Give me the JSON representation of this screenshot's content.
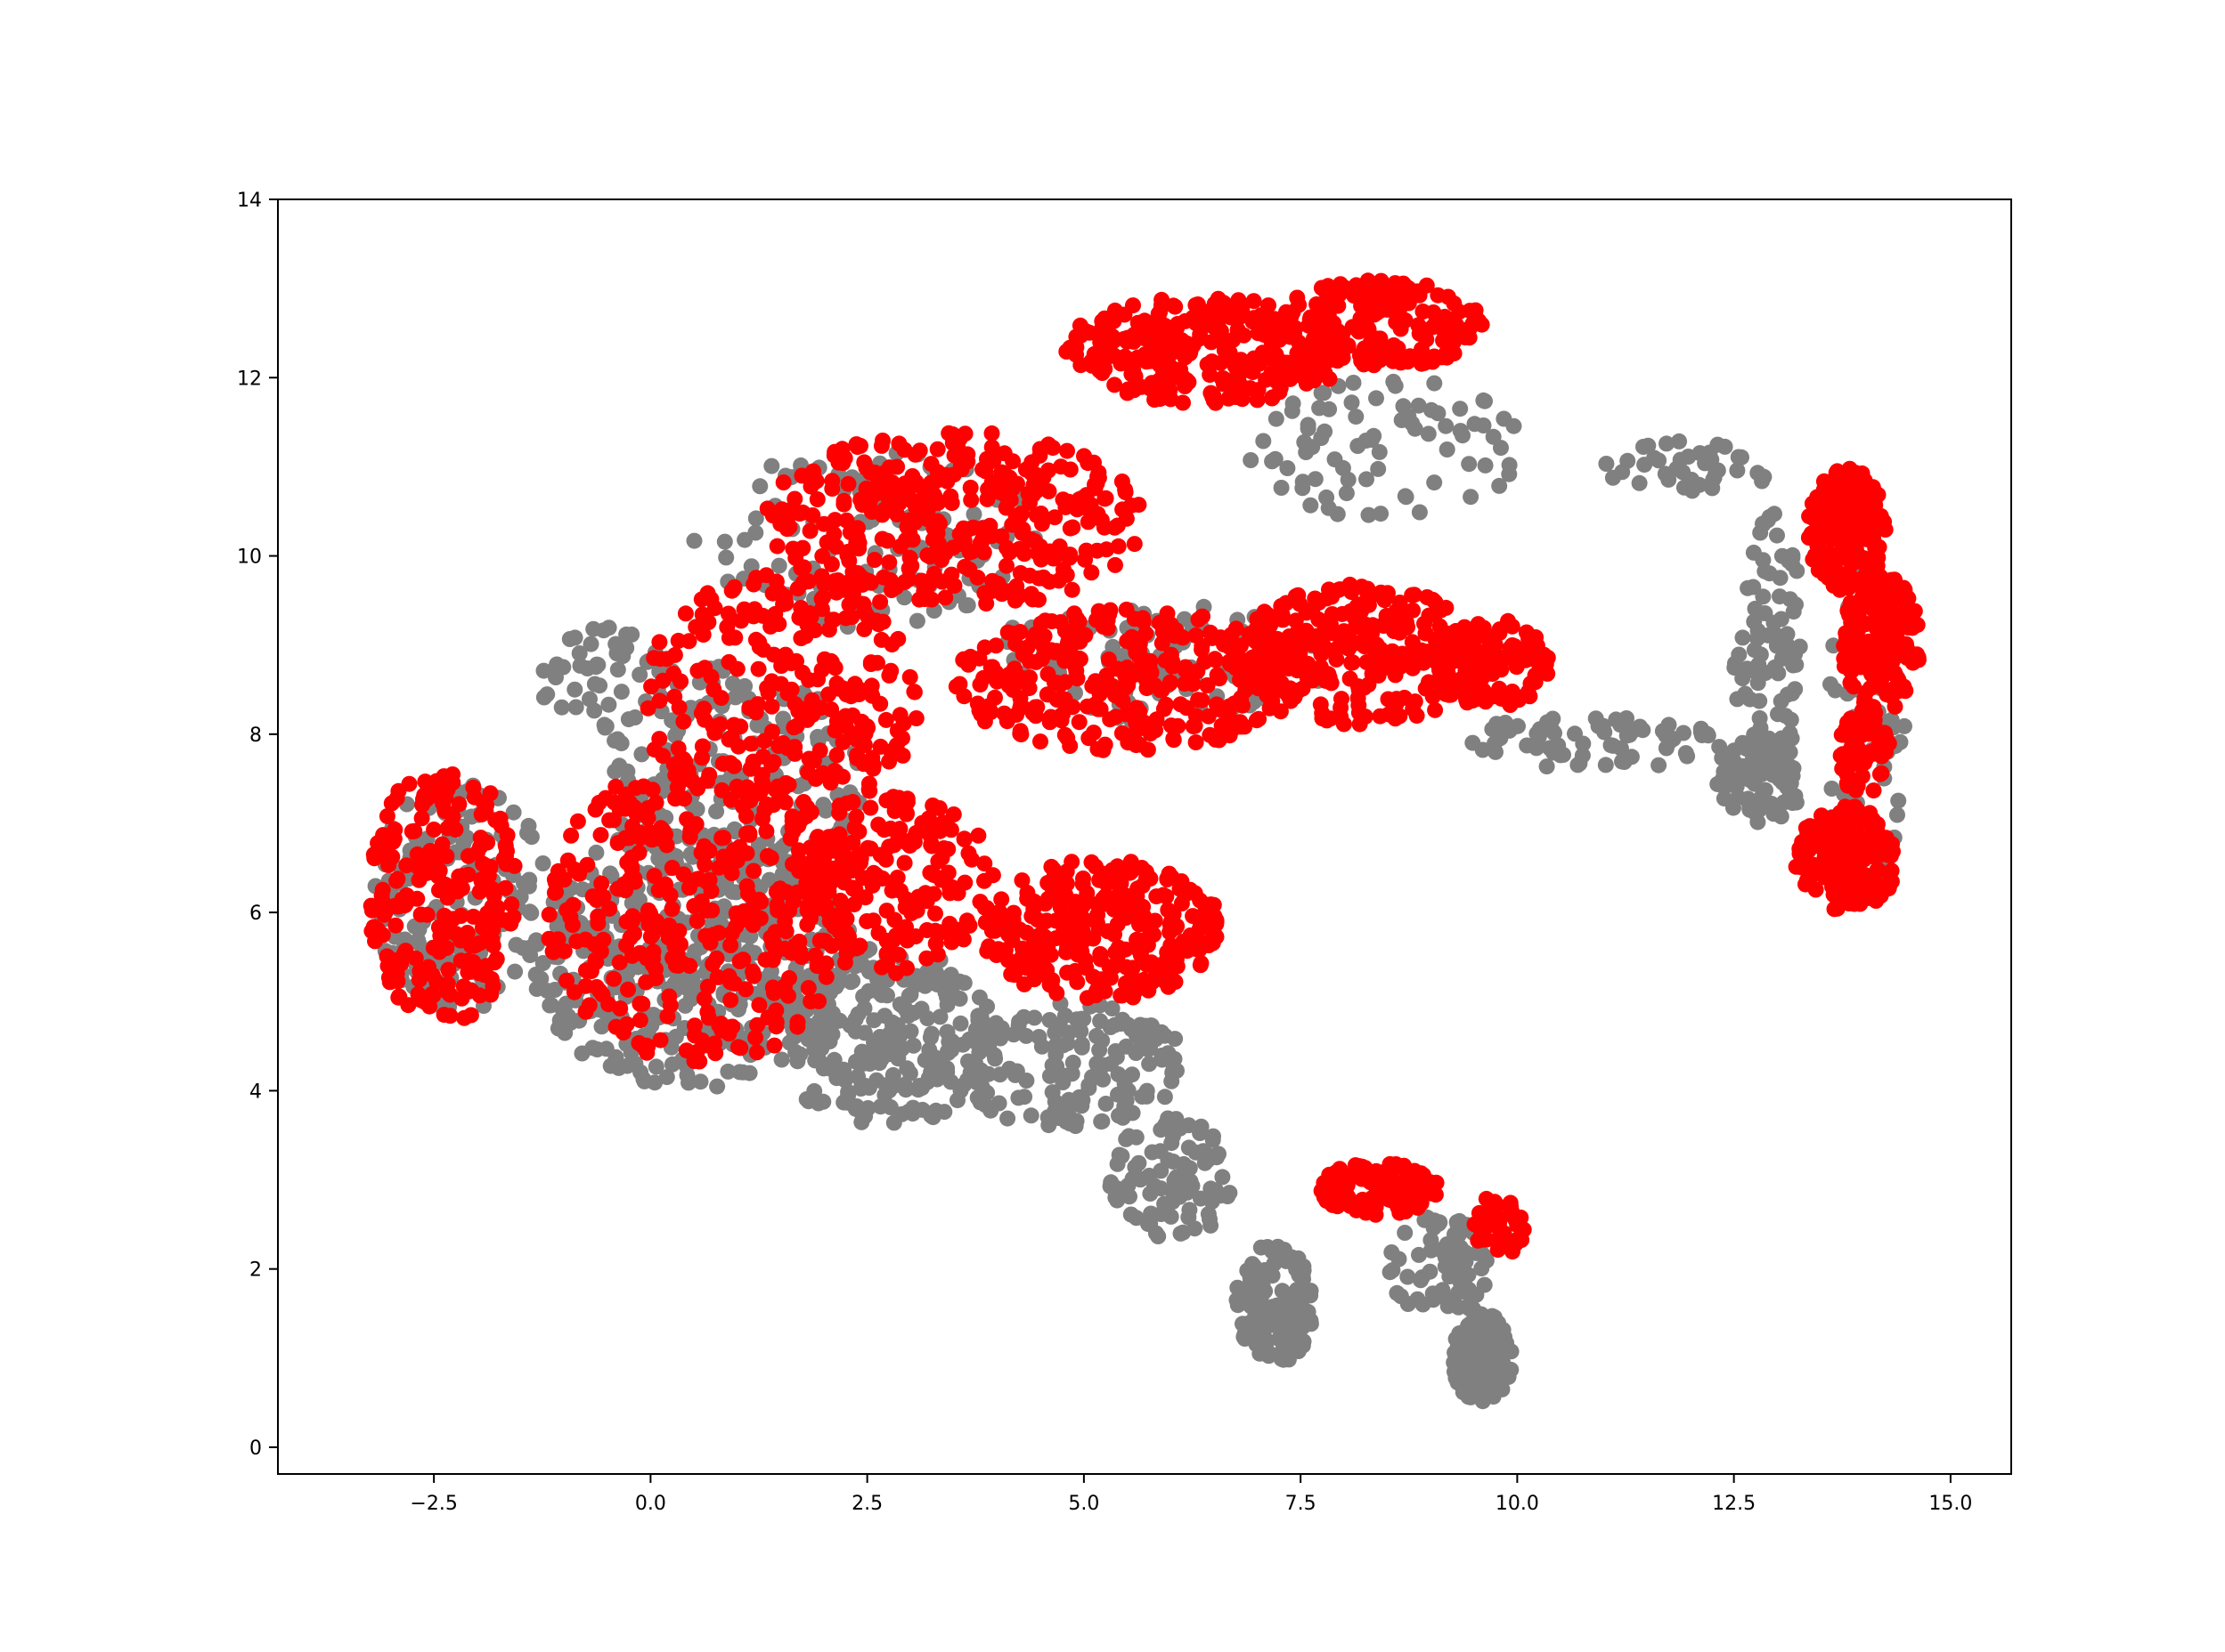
{
  "chart_data": {
    "type": "scatter",
    "title": "",
    "xlabel": "",
    "ylabel": "",
    "xlim": [
      -4.3,
      15.7
    ],
    "ylim": [
      -0.3,
      14.0
    ],
    "x_ticks": [
      -2.5,
      0.0,
      2.5,
      5.0,
      7.5,
      10.0,
      12.5,
      15.0
    ],
    "x_tick_labels": [
      "−2.5",
      "0.0",
      "2.5",
      "5.0",
      "7.5",
      "10.0",
      "12.5",
      "15.0"
    ],
    "y_ticks": [
      0,
      2,
      4,
      6,
      8,
      10,
      12,
      14
    ],
    "y_tick_labels": [
      "0",
      "2",
      "4",
      "6",
      "8",
      "10",
      "12",
      "14"
    ],
    "grid": false,
    "legend": "none",
    "series": [
      {
        "color": "#808080",
        "regions": [
          {
            "cx": -2.2,
            "cy": 6.2,
            "rx": 1.0,
            "ry": 1.3,
            "n": 160
          },
          {
            "cx": 0.5,
            "cy": 5.5,
            "rx": 1.9,
            "ry": 1.5,
            "n": 420
          },
          {
            "cx": 2.7,
            "cy": 4.6,
            "rx": 1.3,
            "ry": 1.0,
            "n": 220
          },
          {
            "cx": 1.0,
            "cy": 7.5,
            "rx": 1.5,
            "ry": 1.3,
            "n": 160
          },
          {
            "cx": 4.8,
            "cy": 4.3,
            "rx": 1.4,
            "ry": 0.7,
            "n": 160
          },
          {
            "cx": 6.0,
            "cy": 3.0,
            "rx": 0.7,
            "ry": 0.7,
            "n": 90
          },
          {
            "cx": 7.2,
            "cy": 1.6,
            "rx": 0.45,
            "ry": 0.7,
            "n": 150
          },
          {
            "cx": 9.6,
            "cy": 1.0,
            "rx": 0.35,
            "ry": 0.5,
            "n": 150
          },
          {
            "cx": 9.1,
            "cy": 2.0,
            "rx": 0.6,
            "ry": 0.6,
            "n": 70
          },
          {
            "cx": 8.5,
            "cy": 11.2,
            "rx": 1.6,
            "ry": 0.8,
            "n": 80
          },
          {
            "cx": 12.0,
            "cy": 11.0,
            "rx": 1.0,
            "ry": 0.3,
            "n": 40
          },
          {
            "cx": 12.9,
            "cy": 9.0,
            "rx": 0.4,
            "ry": 1.5,
            "n": 80
          },
          {
            "cx": 12.8,
            "cy": 7.5,
            "rx": 0.5,
            "ry": 0.5,
            "n": 70
          },
          {
            "cx": 10.8,
            "cy": 7.9,
            "rx": 1.6,
            "ry": 0.3,
            "n": 70
          },
          {
            "cx": 14.0,
            "cy": 8.0,
            "rx": 0.5,
            "ry": 1.8,
            "n": 60
          },
          {
            "cx": 2.5,
            "cy": 10.2,
            "rx": 2.0,
            "ry": 1.0,
            "n": 110
          },
          {
            "cx": 5.8,
            "cy": 8.8,
            "rx": 2.0,
            "ry": 0.7,
            "n": 90
          },
          {
            "cx": -0.5,
            "cy": 8.6,
            "rx": 0.8,
            "ry": 0.6,
            "n": 50
          }
        ]
      },
      {
        "color": "#ff0000",
        "regions": [
          {
            "cx": -2.4,
            "cy": 6.2,
            "rx": 0.85,
            "ry": 1.5,
            "n": 220
          },
          {
            "cx": 0.6,
            "cy": 6.0,
            "rx": 1.8,
            "ry": 1.7,
            "n": 360
          },
          {
            "cx": 1.5,
            "cy": 8.4,
            "rx": 1.6,
            "ry": 1.4,
            "n": 260
          },
          {
            "cx": 3.5,
            "cy": 10.4,
            "rx": 2.2,
            "ry": 1.0,
            "n": 360
          },
          {
            "cx": 6.4,
            "cy": 12.3,
            "rx": 1.7,
            "ry": 0.6,
            "n": 280
          },
          {
            "cx": 8.4,
            "cy": 12.6,
            "rx": 1.2,
            "ry": 0.5,
            "n": 180
          },
          {
            "cx": 5.5,
            "cy": 8.6,
            "rx": 2.0,
            "ry": 0.8,
            "n": 320
          },
          {
            "cx": 8.2,
            "cy": 8.9,
            "rx": 1.4,
            "ry": 0.8,
            "n": 260
          },
          {
            "cx": 9.7,
            "cy": 8.8,
            "rx": 0.7,
            "ry": 0.5,
            "n": 120
          },
          {
            "cx": 5.2,
            "cy": 5.8,
            "rx": 1.4,
            "ry": 0.8,
            "n": 300
          },
          {
            "cx": 2.8,
            "cy": 6.3,
            "rx": 1.2,
            "ry": 1.0,
            "n": 180
          },
          {
            "cx": 8.4,
            "cy": 2.9,
            "rx": 0.7,
            "ry": 0.3,
            "n": 110
          },
          {
            "cx": 9.8,
            "cy": 2.5,
            "rx": 0.3,
            "ry": 0.35,
            "n": 40
          },
          {
            "cx": 13.8,
            "cy": 10.3,
            "rx": 0.45,
            "ry": 0.7,
            "n": 170
          },
          {
            "cx": 14.2,
            "cy": 9.0,
            "rx": 0.45,
            "ry": 0.8,
            "n": 160
          },
          {
            "cx": 13.8,
            "cy": 6.6,
            "rx": 0.6,
            "ry": 0.6,
            "n": 170
          },
          {
            "cx": 14.0,
            "cy": 7.8,
            "rx": 0.3,
            "ry": 0.5,
            "n": 60
          }
        ]
      }
    ]
  }
}
